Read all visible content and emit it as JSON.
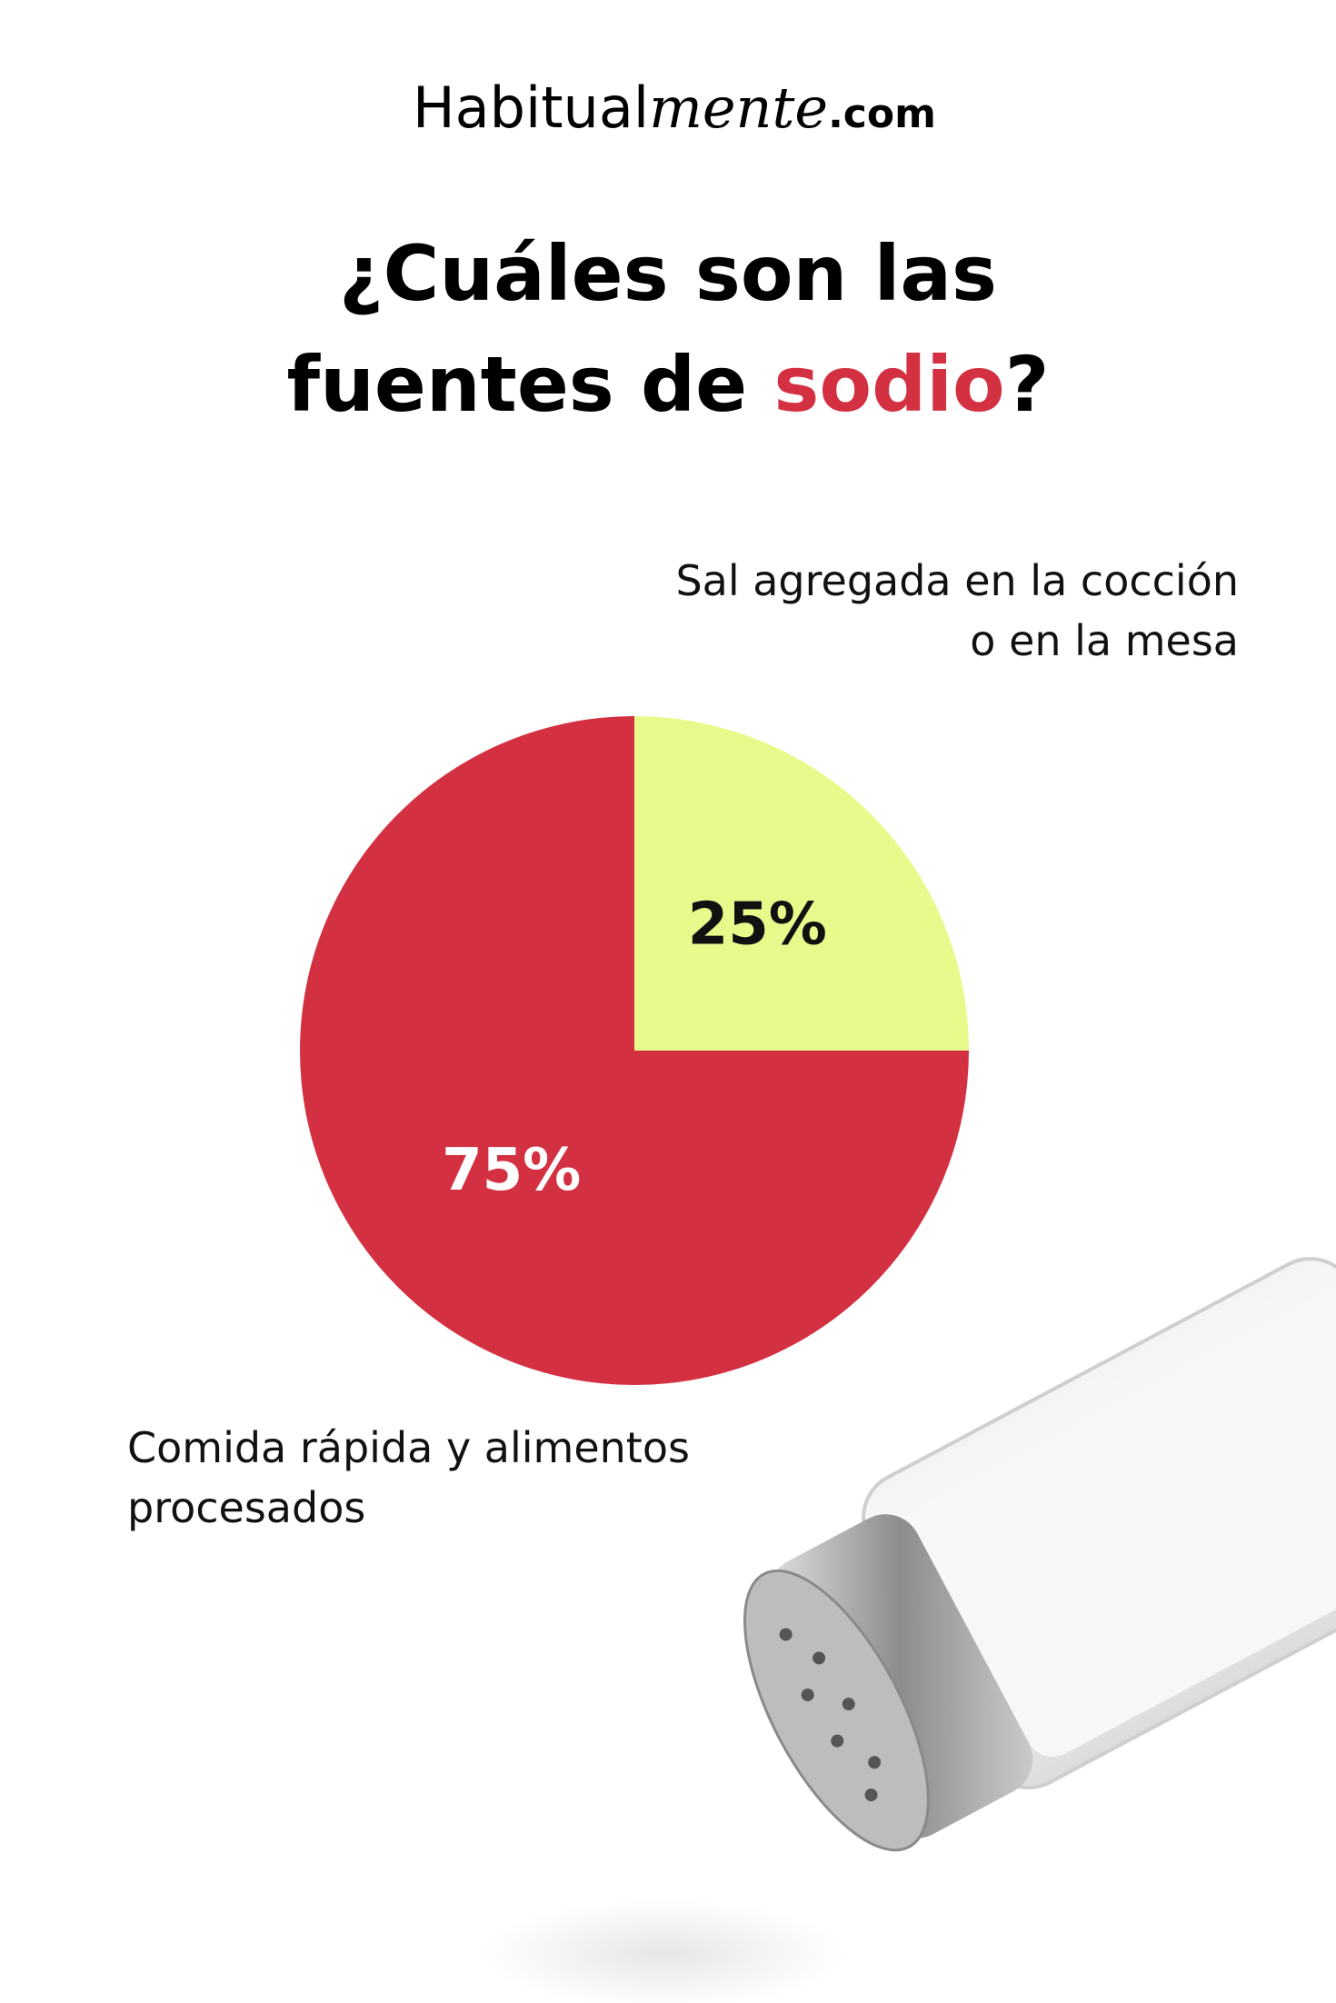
{
  "brand": {
    "parts": [
      "Habitual",
      "mente",
      ".com"
    ]
  },
  "chart_data": {
    "type": "pie",
    "title": {
      "line1": "¿Cuáles son las",
      "line2": [
        "fuentes de ",
        "sodio",
        "?"
      ]
    },
    "categories": [
      "Sal agregada en la cocción o en la mesa",
      "Comida rápida y alimentos procesados"
    ],
    "values": [
      25,
      75
    ],
    "value_labels": [
      "25%",
      "75%"
    ],
    "colors": [
      "#e8fa8c",
      "#d33142"
    ],
    "value_label_colors": [
      "#111111",
      "#ffffff"
    ]
  }
}
